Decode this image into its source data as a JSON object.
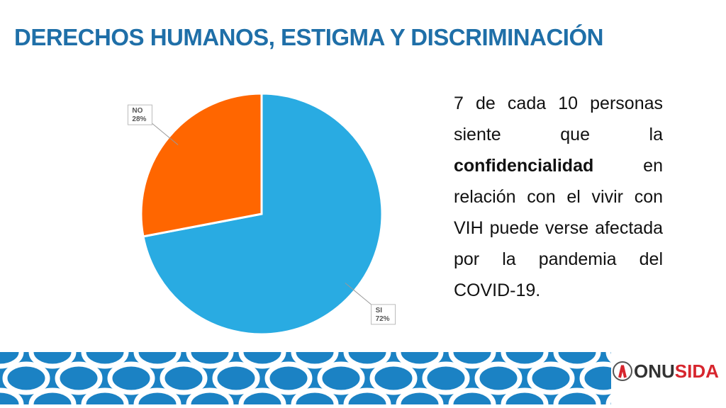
{
  "header": {
    "title": "DERECHOS HUMANOS, ESTIGMA Y DISCRIMINACIÓN"
  },
  "chart_data": {
    "type": "pie",
    "categories": [
      "SI",
      "NO"
    ],
    "values": [
      72,
      28
    ],
    "value_labels": [
      "72%",
      "28%"
    ],
    "colors": [
      "#29abe2",
      "#ff6600"
    ]
  },
  "text": {
    "parts": [
      "7 de cada 10 personas siente que la ",
      "confidencialidad",
      " en relación con el vivir con VIH puede verse afectada por la pandemia del COVID-19."
    ]
  },
  "logo": {
    "parts": [
      "ONU",
      "SIDA"
    ]
  }
}
